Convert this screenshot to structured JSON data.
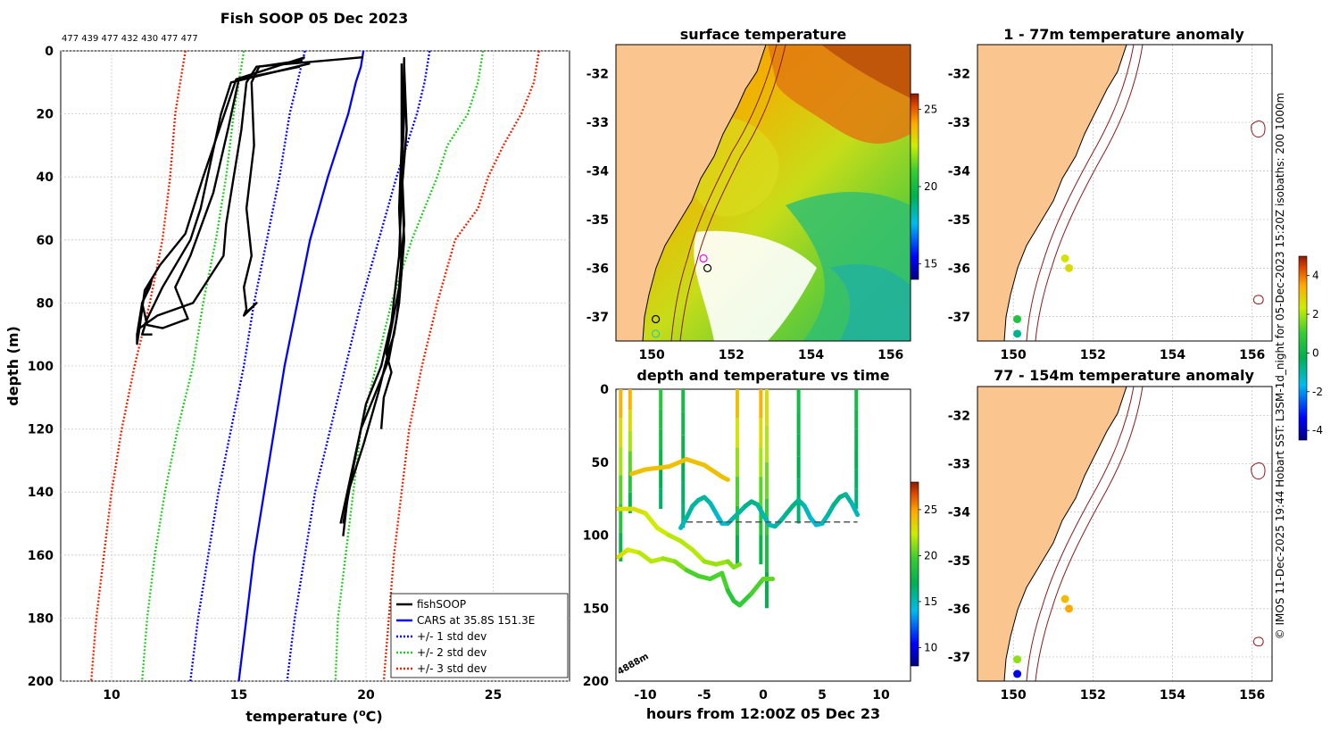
{
  "credit": "© IMOS 11-Dec-2025 19:44 Hobart SST: L3SM-1d_night for 05-Dec-2023 15:20Z isobaths: 200  1000m",
  "chart_data": [
    {
      "type": "line",
      "title": "Fish SOOP 05 Dec 2023",
      "subtitle": "477 439 477 432 430 477 477",
      "xlabel": "temperature (°C)",
      "ylabel": "depth (m)",
      "xlim": [
        8,
        28
      ],
      "ylim": [
        200,
        0
      ],
      "xticks": [
        "10",
        "15",
        "20",
        "25"
      ],
      "yticks": [
        "0",
        "20",
        "40",
        "60",
        "80",
        "100",
        "120",
        "140",
        "160",
        "180",
        "200"
      ],
      "legend": {
        "placement": "bottom-right",
        "entries": [
          "fishSOOP",
          "CARS at 35.8S 151.3E",
          "+/- 1 std dev",
          "+/- 2 std dev",
          "+/- 3 std dev"
        ]
      },
      "series": [
        {
          "name": "CARS at 35.8S 151.3E",
          "color": "#0000ff",
          "style": "solid",
          "depth": [
            0,
            5,
            10,
            20,
            40,
            60,
            80,
            100,
            120,
            140,
            160,
            180,
            200
          ],
          "temp": [
            19.9,
            19.8,
            19.6,
            19.3,
            18.5,
            17.8,
            17.3,
            16.8,
            16.4,
            16.0,
            15.6,
            15.3,
            15.0
          ]
        },
        {
          "name": "+1 std",
          "color": "#0000ff",
          "style": "dotted",
          "depth": [
            0,
            10,
            20,
            40,
            60,
            80,
            100,
            120,
            140,
            160,
            180,
            200
          ],
          "temp": [
            22.5,
            22.3,
            22.0,
            21.2,
            20.5,
            19.8,
            19.2,
            18.6,
            18.0,
            17.6,
            17.2,
            16.9
          ]
        },
        {
          "name": "-1 std",
          "color": "#0000ff",
          "style": "dotted",
          "depth": [
            0,
            10,
            20,
            40,
            60,
            80,
            100,
            120,
            140,
            160,
            180,
            200
          ],
          "temp": [
            17.6,
            17.3,
            17.0,
            16.6,
            16.1,
            15.6,
            15.2,
            14.7,
            14.2,
            13.8,
            13.4,
            13.1
          ]
        },
        {
          "name": "+2 std",
          "color": "#22cc22",
          "style": "dotted",
          "depth": [
            0,
            10,
            20,
            30,
            40,
            60,
            80,
            100,
            120,
            140,
            160,
            180,
            200
          ],
          "temp": [
            24.6,
            24.4,
            24.0,
            23.2,
            22.8,
            21.8,
            21.0,
            20.4,
            19.8,
            19.5,
            19.2,
            18.9,
            18.8
          ]
        },
        {
          "name": "-2 std",
          "color": "#22cc22",
          "style": "dotted",
          "depth": [
            0,
            10,
            20,
            40,
            60,
            80,
            100,
            120,
            140,
            160,
            180,
            200
          ],
          "temp": [
            15.2,
            15.0,
            14.8,
            14.5,
            14.1,
            13.6,
            13.2,
            12.6,
            12.1,
            11.7,
            11.4,
            11.2
          ]
        },
        {
          "name": "+3 std",
          "color": "#ee2200",
          "style": "dotted",
          "depth": [
            0,
            10,
            20,
            30,
            40,
            50,
            60,
            80,
            100,
            120,
            140,
            160,
            180,
            200
          ],
          "temp": [
            26.8,
            26.6,
            26.1,
            25.4,
            24.8,
            24.4,
            23.5,
            22.8,
            22.2,
            21.7,
            21.4,
            21.1,
            20.9,
            20.7
          ]
        },
        {
          "name": "-3 std",
          "color": "#ee2200",
          "style": "dotted",
          "depth": [
            0,
            10,
            20,
            40,
            60,
            80,
            100,
            120,
            140,
            160,
            180,
            200
          ],
          "temp": [
            12.9,
            12.7,
            12.5,
            12.3,
            12.0,
            11.5,
            10.9,
            10.4,
            10.0,
            9.7,
            9.4,
            9.2
          ]
        }
      ],
      "fishsoop_casts": [
        {
          "temp": [
            17.5,
            15.8,
            15.5,
            15.6,
            15.3,
            15.5,
            15.2,
            15.3,
            15.2,
            15.7,
            15.3
          ],
          "depth": [
            3,
            5,
            10,
            30,
            50,
            65,
            75,
            82,
            84,
            80,
            83
          ]
        },
        {
          "temp": [
            17.6,
            14.9,
            13.6,
            12.9,
            11.9,
            11.3,
            11.2,
            11.1,
            11.0,
            11.0,
            11.2,
            11.6
          ],
          "depth": [
            2,
            9,
            40,
            58,
            68,
            76,
            82,
            88,
            93,
            90,
            80,
            72
          ]
        },
        {
          "temp": [
            17.8,
            14.7,
            14.3,
            13.5,
            13.1,
            12.0,
            11.4,
            11.2,
            11.6
          ],
          "depth": [
            4,
            10,
            20,
            50,
            60,
            75,
            85,
            90,
            90
          ]
        },
        {
          "temp": [
            17.4,
            15.0,
            14.6,
            14.0,
            13.1,
            12.5,
            13.0,
            12.0,
            11.4,
            11.2,
            11.5,
            11.6
          ],
          "depth": [
            5,
            9,
            24,
            45,
            65,
            75,
            85,
            88,
            87,
            80,
            75,
            72
          ]
        },
        {
          "temp": [
            19.9,
            15.7,
            15.3,
            15.1,
            14.8,
            14.5,
            14.4,
            13.2,
            11.8,
            11.1
          ],
          "depth": [
            2,
            5,
            10,
            25,
            40,
            55,
            65,
            80,
            84,
            88
          ]
        },
        {
          "temp": [
            21.5,
            21.5,
            21.4,
            21.5,
            21.3,
            21.1,
            20.9,
            20.5,
            19.9,
            19.3,
            19.1
          ],
          "depth": [
            3,
            20,
            40,
            60,
            80,
            90,
            95,
            108,
            125,
            140,
            154
          ]
        },
        {
          "temp": [
            21.4,
            21.4,
            21.3,
            21.4,
            21.2,
            20.9,
            20.3,
            19.8,
            19.4,
            19.0
          ],
          "depth": [
            4,
            30,
            50,
            70,
            85,
            98,
            110,
            120,
            135,
            150
          ]
        },
        {
          "temp": [
            21.5,
            21.6,
            21.4,
            21.3,
            21.0,
            20.6,
            20.0,
            19.6,
            19.1
          ],
          "depth": [
            5,
            25,
            45,
            65,
            86,
            100,
            112,
            128,
            150
          ]
        },
        {
          "temp": [
            21.5,
            21.4,
            21.5,
            21.3,
            21.0,
            20.8,
            21.0,
            20.7,
            20.6
          ],
          "depth": [
            2,
            35,
            55,
            75,
            88,
            96,
            102,
            110,
            120
          ]
        }
      ]
    },
    {
      "type": "heatmap",
      "title": "surface temperature",
      "xticks": [
        "150",
        "152",
        "154",
        "156"
      ],
      "yticks": [
        "-32",
        "-33",
        "-34",
        "-35",
        "-36",
        "-37"
      ],
      "xlim": [
        149.1,
        156.5
      ],
      "ylim": [
        -37.5,
        -31.4
      ],
      "colorbar": {
        "ticks": [
          "25",
          "20",
          "15"
        ],
        "range": [
          14,
          26
        ]
      },
      "markers": [
        {
          "lon": 151.3,
          "lat": -35.8,
          "color": "#ff00ff"
        },
        {
          "lon": 151.4,
          "lat": -36.0,
          "color": "#000000"
        },
        {
          "lon": 150.1,
          "lat": -37.05,
          "color": "#000000"
        },
        {
          "lon": 150.1,
          "lat": -37.35,
          "color": "#22ccaa"
        }
      ]
    },
    {
      "type": "heatmap",
      "title": "1 - 77m temperature anomaly",
      "xticks": [
        "150",
        "152",
        "154",
        "156"
      ],
      "yticks": [
        "-32",
        "-33",
        "-34",
        "-35",
        "-36",
        "-37"
      ],
      "xlim": [
        149.1,
        156.5
      ],
      "ylim": [
        -37.5,
        -31.4
      ],
      "points": [
        {
          "lon": 151.3,
          "lat": -35.8,
          "anomaly": 2.5
        },
        {
          "lon": 151.4,
          "lat": -36.0,
          "anomaly": 2.7
        },
        {
          "lon": 150.1,
          "lat": -37.05,
          "anomaly": 0.6
        },
        {
          "lon": 150.1,
          "lat": -37.35,
          "anomaly": -0.8
        }
      ]
    },
    {
      "type": "heatmap",
      "title": "77 - 154m temperature anomaly",
      "xticks": [
        "150",
        "152",
        "154",
        "156"
      ],
      "yticks": [
        "-32",
        "-33",
        "-34",
        "-35",
        "-36",
        "-37"
      ],
      "xlim": [
        149.1,
        156.5
      ],
      "ylim": [
        -37.5,
        -31.4
      ],
      "points": [
        {
          "lon": 151.3,
          "lat": -35.8,
          "anomaly": 3.2
        },
        {
          "lon": 151.4,
          "lat": -36.0,
          "anomaly": 3.5
        },
        {
          "lon": 150.1,
          "lat": -37.05,
          "anomaly": 1.8
        },
        {
          "lon": 150.1,
          "lat": -37.35,
          "anomaly": -3.5
        }
      ]
    },
    {
      "type": "line",
      "title": "depth and temperature vs time",
      "xlabel": "hours from 12:00Z 05 Dec 23",
      "xlim": [
        -12.5,
        12.5
      ],
      "ylim": [
        200,
        0
      ],
      "xticks": [
        "-10",
        "-5",
        "0",
        "5",
        "10"
      ],
      "yticks": [
        "0",
        "50",
        "100",
        "150",
        "200"
      ],
      "annotation": "4888m",
      "colorbar": {
        "ticks": [
          "25",
          "20",
          "15",
          "10"
        ],
        "range": [
          8,
          28
        ]
      },
      "series": [
        {
          "name": "depth-track-deep",
          "t": [
            -12.3,
            -11.5,
            -10.5,
            -9.5,
            -8.5,
            -7.5,
            -6.5,
            -5.5,
            -4.5,
            -3.5,
            -3.0,
            -2.5,
            -2.0,
            -1.0,
            0.0,
            0.8
          ],
          "depth": [
            115,
            110,
            112,
            118,
            116,
            118,
            124,
            128,
            130,
            126,
            138,
            145,
            148,
            140,
            130,
            130
          ],
          "temp": [
            23,
            23,
            22.5,
            22,
            22,
            21.5,
            21,
            20,
            20,
            20,
            20,
            19,
            19,
            19.5,
            20,
            20.5
          ]
        },
        {
          "name": "depth-track-mid",
          "t": [
            -12.3,
            -11.0,
            -10.0,
            -9.0,
            -8.0,
            -7.0,
            -6.0,
            -5.0,
            -4.0,
            -3.0,
            -2.5,
            -2.0
          ],
          "depth": [
            82,
            82,
            85,
            95,
            100,
            104,
            110,
            118,
            120,
            118,
            122,
            120
          ],
          "temp": [
            23,
            23,
            23,
            22.5,
            22.5,
            22,
            22,
            22,
            21.5,
            21.5,
            21,
            21
          ]
        },
        {
          "name": "depth-track-upper",
          "t": [
            -11.2,
            -10.0,
            -8.0,
            -6.5,
            -5.0,
            -3.5,
            -3.0
          ],
          "depth": [
            58,
            55,
            53,
            48,
            52,
            60,
            62
          ],
          "temp": [
            24,
            24,
            24,
            24,
            24,
            24,
            24
          ]
        },
        {
          "name": "yo-yo-track",
          "t": [
            -7.0,
            -6.5,
            -6.0,
            -5.5,
            -5.0,
            -4.5,
            -4.0,
            -3.5,
            -3.0,
            -2.5,
            -2.0,
            -1.5,
            -1.0,
            -0.5,
            0.0,
            0.5,
            1.0,
            1.5,
            2.0,
            2.5,
            3.0,
            3.5,
            4.0,
            4.5,
            5.0,
            5.5,
            6.0,
            6.5,
            7.0,
            7.5,
            8.0
          ],
          "depth": [
            95,
            88,
            80,
            76,
            74,
            78,
            85,
            92,
            92,
            88,
            84,
            80,
            77,
            79,
            86,
            93,
            94,
            90,
            85,
            80,
            76,
            80,
            88,
            93,
            92,
            86,
            79,
            74,
            72,
            78,
            86
          ],
          "temp": [
            15,
            15,
            15.5,
            15.5,
            15.5,
            15.5,
            15,
            14.5,
            14.5,
            15,
            15.5,
            15.5,
            16,
            16,
            15.5,
            15,
            15,
            15.5,
            15.5,
            16,
            16,
            15.5,
            15,
            14.5,
            14.5,
            15,
            15.5,
            16,
            16,
            15.5,
            15
          ]
        },
        {
          "name": "bottom-line",
          "t": [
            -6.5,
            8.0
          ],
          "depth": [
            91,
            91
          ]
        }
      ],
      "casts": [
        {
          "t": -12.1,
          "tempTop": 24.5,
          "bottom": 118
        },
        {
          "t": -11.3,
          "tempTop": 24.5,
          "bottom": 85
        },
        {
          "t": -8.7,
          "tempTop": 19,
          "bottom": 82
        },
        {
          "t": -6.8,
          "tempTop": 18,
          "bottom": 95
        },
        {
          "t": -2.2,
          "tempTop": 24,
          "bottom": 120
        },
        {
          "t": -0.2,
          "tempTop": 24.5,
          "bottom": 120
        },
        {
          "t": 0.3,
          "tempTop": 23,
          "bottom": 150
        },
        {
          "t": 3.0,
          "tempTop": 18,
          "bottom": 92
        },
        {
          "t": 7.9,
          "tempTop": 18,
          "bottom": 82
        }
      ]
    },
    {
      "type": "heatmap",
      "name": "anomaly-colorbar",
      "colorbar": {
        "ticks": [
          "4",
          "2",
          "0",
          "-2",
          "-4"
        ],
        "range": [
          -4.5,
          5
        ]
      }
    }
  ]
}
